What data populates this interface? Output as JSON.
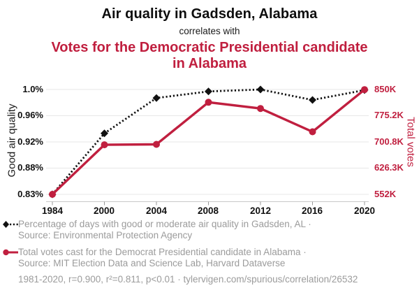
{
  "header": {
    "title": "Air quality in Gadsden, Alabama",
    "connector": "correlates with",
    "subtitle": "Votes for the Democratic Presidential candidate in Alabama"
  },
  "colors": {
    "accent_red": "#c01f3f",
    "series_black": "#111111",
    "legend_gray": "#9b9b9b",
    "gridline": "#e7e7e7",
    "axis_line": "#c8c8c8",
    "tick_mark": "#999999"
  },
  "chart_data": {
    "type": "line",
    "x": [
      1984,
      2000,
      2004,
      2008,
      2012,
      2016,
      2020
    ],
    "series": [
      {
        "name": "Percentage of days with good or moderate air quality in Gadsden, AL",
        "axis": "left",
        "unit": "%",
        "color": "#111111",
        "line_style": "dotted",
        "marker": "diamond",
        "values": [
          0.83,
          0.933,
          0.987,
          0.997,
          1.0,
          0.984,
          0.999
        ]
      },
      {
        "name": "Total votes cast for the Democrat Presidential candidate in Alabama",
        "axis": "right",
        "unit": "thousand votes",
        "color": "#c01f3f",
        "line_style": "solid",
        "marker": "circle",
        "values": [
          551.9,
          692.6,
          693.9,
          813.5,
          795.7,
          729.5,
          849.6
        ]
      }
    ],
    "left_axis": {
      "title": "Good air quality",
      "tick_labels": [
        "1.0%",
        "0.96%",
        "0.92%",
        "0.88%",
        "0.83%"
      ],
      "tick_values": [
        1.0,
        0.96,
        0.92,
        0.88,
        0.83
      ],
      "range": [
        0.83,
        1.0
      ]
    },
    "right_axis": {
      "title": "Total votes",
      "tick_labels": [
        "850K",
        "775.2K",
        "700.8K",
        "626.3K",
        "552K"
      ],
      "tick_values": [
        850,
        775.2,
        700.8,
        626.3,
        552
      ],
      "range": [
        552,
        850
      ]
    },
    "grid": true,
    "legend_position": "bottom"
  },
  "legend": {
    "items": [
      {
        "marker": "black-diamond-dotted-line",
        "line1": "Percentage of days with good or moderate air quality in Gadsden, AL ·",
        "line2": "Source: Environmental Protection Agency"
      },
      {
        "marker": "red-circle-solid-line",
        "line1": "Total votes cast for the Democrat Presidential candidate in Alabama ·",
        "line2": "Source: MIT Election Data and Science Lab, Harvard Dataverse"
      }
    ]
  },
  "footer": {
    "text": "1981-2020, r=0.900, r²=0.811, p<0.01 · tylervigen.com/spurious/correlation/26532"
  }
}
